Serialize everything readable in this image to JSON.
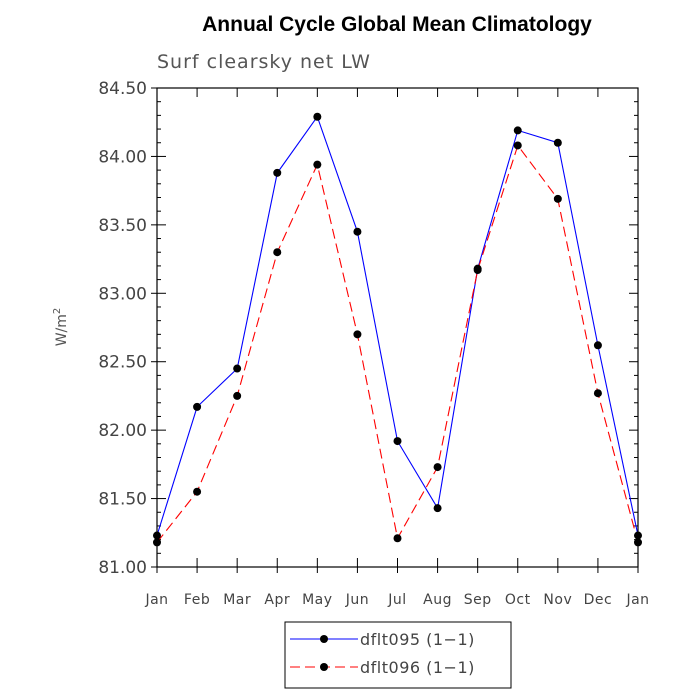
{
  "chart_data": {
    "type": "line",
    "title": "Annual Cycle Global Mean Climatology",
    "subtitle": "Surf clearsky net LW",
    "xlabel": "",
    "ylabel": "W/m",
    "ylabel_sup": "2",
    "categories": [
      "Jan",
      "Feb",
      "Mar",
      "Apr",
      "May",
      "Jun",
      "Jul",
      "Aug",
      "Sep",
      "Oct",
      "Nov",
      "Dec",
      "Jan"
    ],
    "ylim": [
      81.0,
      84.5
    ],
    "yticks": [
      "81.00",
      "81.50",
      "82.00",
      "82.50",
      "83.00",
      "83.50",
      "84.00",
      "84.50"
    ],
    "series": [
      {
        "name": "dflt095 (1-1)",
        "color": "#0000ff",
        "dash": "solid",
        "values": [
          81.23,
          82.17,
          82.45,
          83.88,
          84.29,
          83.45,
          81.92,
          81.43,
          83.18,
          84.19,
          84.1,
          82.62,
          81.23
        ]
      },
      {
        "name": "dflt096 (1-1)",
        "color": "#ff0000",
        "dash": "dashed",
        "values": [
          81.18,
          81.55,
          82.25,
          83.3,
          83.94,
          82.7,
          81.21,
          81.73,
          83.17,
          84.08,
          83.69,
          82.27,
          81.18
        ]
      }
    ],
    "legend": {
      "position": "bottom-center",
      "entries": [
        "dflt095 (1−1)",
        "dflt096 (1−1)"
      ]
    }
  }
}
